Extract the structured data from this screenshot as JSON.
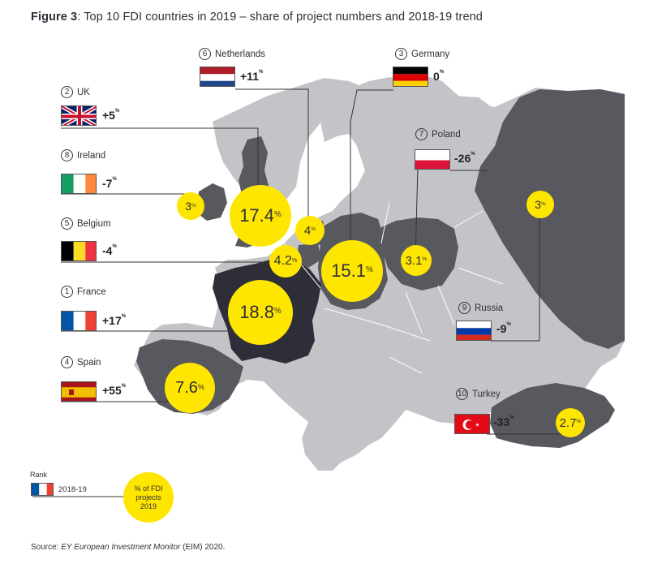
{
  "title": {
    "label": "Figure 3",
    "text": ": Top 10 FDI countries in 2019 – share of project numbers and 2018-19 trend"
  },
  "source": {
    "prefix": "Source: ",
    "name": "EY European Investment Monitor",
    "suffix": " (EIM) 2020."
  },
  "countries": [
    {
      "id": "netherlands",
      "rank": "6",
      "name": "Netherlands",
      "trend": "+11",
      "share": "4"
    },
    {
      "id": "germany",
      "rank": "3",
      "name": "Germany",
      "trend": "0",
      "share": "15.1"
    },
    {
      "id": "uk",
      "rank": "2",
      "name": "UK",
      "trend": "+5",
      "share": "17.4"
    },
    {
      "id": "poland",
      "rank": "7",
      "name": "Poland",
      "trend": "-26",
      "share": "3.1"
    },
    {
      "id": "ireland",
      "rank": "8",
      "name": "Ireland",
      "trend": "-7",
      "share": "3"
    },
    {
      "id": "belgium",
      "rank": "5",
      "name": "Belgium",
      "trend": "-4",
      "share": "4.2"
    },
    {
      "id": "france",
      "rank": "1",
      "name": "France",
      "trend": "+17",
      "share": "18.8"
    },
    {
      "id": "russia",
      "rank": "9",
      "name": "Russia",
      "trend": "-9",
      "share": "3"
    },
    {
      "id": "spain",
      "rank": "4",
      "name": "Spain",
      "trend": "+55",
      "share": "7.6"
    },
    {
      "id": "turkey",
      "rank": "10",
      "name": "Turkey",
      "trend": "-33",
      "share": "2.7"
    }
  ],
  "percent_sign": "%",
  "legend": {
    "rank_label": "Rank",
    "years": "2018-19",
    "bubble_line1": "% of FDI",
    "bubble_line2": "projects",
    "bubble_line3": "2019"
  },
  "colors": {
    "highlight": "#ffe600",
    "dark_country": "#58585f",
    "top_country": "#2e2e38",
    "light_country": "#c4c4c8",
    "sea": "#ffffff"
  }
}
